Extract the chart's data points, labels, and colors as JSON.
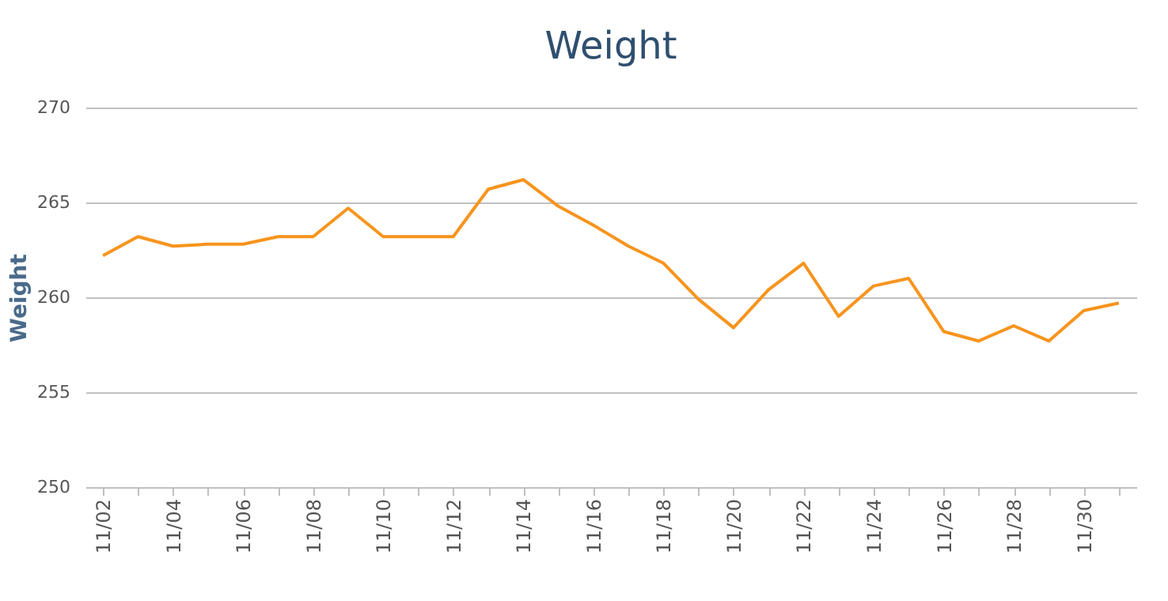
{
  "chart_data": {
    "type": "line",
    "title": "Weight",
    "ylabel": "Weight",
    "categories": [
      "11/02",
      null,
      "11/04",
      null,
      "11/06",
      null,
      "11/08",
      null,
      "11/10",
      null,
      "11/12",
      null,
      "11/14",
      null,
      "11/16",
      null,
      "11/18",
      null,
      "11/20",
      null,
      "11/22",
      null,
      "11/24",
      null,
      "11/26",
      null,
      "11/28",
      null,
      "11/30",
      null
    ],
    "series": [
      {
        "color": "#f7941d",
        "values": [
          262.2,
          263.2,
          262.7,
          262.8,
          262.8,
          263.2,
          263.2,
          264.7,
          263.2,
          263.2,
          263.2,
          265.7,
          266.2,
          264.8,
          263.8,
          262.7,
          261.8,
          259.9,
          258.4,
          260.4,
          261.8,
          259.0,
          260.6,
          261.0,
          258.2,
          257.7,
          258.5,
          257.7,
          259.3,
          259.7
        ]
      }
    ],
    "ylim": [
      250,
      270
    ],
    "yticks": [
      250,
      255,
      260,
      265,
      270
    ],
    "grid": "y",
    "marker": "none",
    "line_style": "solid"
  }
}
